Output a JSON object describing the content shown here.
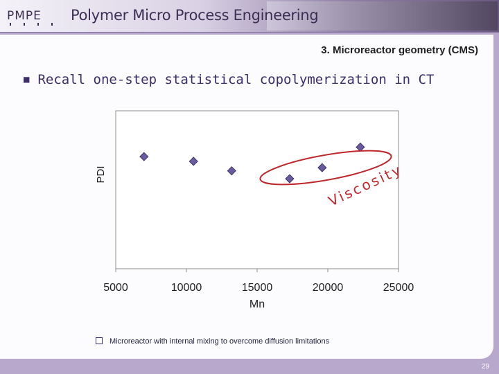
{
  "header": {
    "title": "Polymer Micro Process Engineering",
    "logo_text": "PMPE"
  },
  "slide": {
    "section_title": "3. Microreactor geometry (CMS)",
    "bullet": "Recall one-step statistical copolymerization in CT",
    "bullet_icon": "square-bullet-icon",
    "footnote": "Microreactor with internal mixing to overcome diffusion limitations",
    "footnote_icon": "hollow-square-bullet-icon",
    "page_number": "29"
  },
  "chart_data": {
    "type": "scatter",
    "xlabel": "Mn",
    "ylabel": "PDI",
    "xlim": [
      5000,
      25000
    ],
    "x_ticks": [
      "5000",
      "10000",
      "15000",
      "20000",
      "25000"
    ],
    "y_ticks_shown": false,
    "marker_color": "#6a5a9f",
    "points": [
      {
        "x": 7000,
        "y": 0.71
      },
      {
        "x": 10500,
        "y": 0.68
      },
      {
        "x": 13200,
        "y": 0.62
      },
      {
        "x": 17300,
        "y": 0.57
      },
      {
        "x": 19600,
        "y": 0.64
      },
      {
        "x": 22300,
        "y": 0.77
      }
    ],
    "highlight": {
      "label": "Viscosity",
      "color": "#c0272d",
      "points": [
        3,
        4,
        5
      ]
    }
  }
}
